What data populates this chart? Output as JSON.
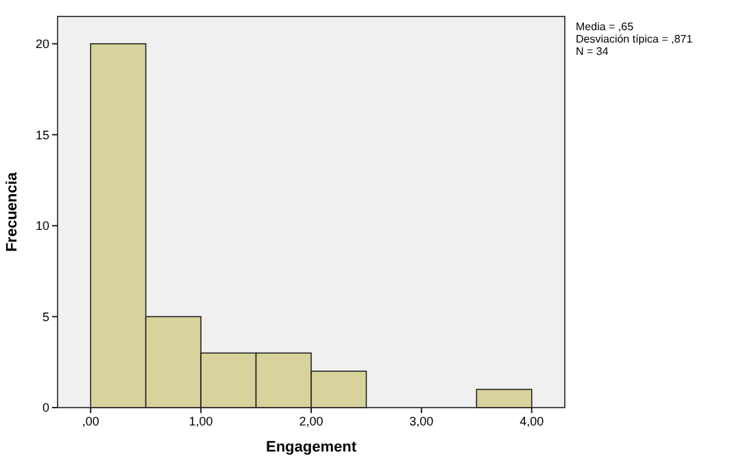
{
  "chart_data": {
    "type": "histogram",
    "xlabel": "Engagement",
    "ylabel": "Frecuencia",
    "bins": [
      0,
      0.5,
      1,
      1.5,
      2,
      2.5,
      3,
      3.5,
      4
    ],
    "values": [
      20,
      5,
      3,
      3,
      2,
      0,
      0,
      1
    ],
    "color": "#d8d29c",
    "xlim": [
      -0.3,
      4.3
    ],
    "ylim": [
      0,
      21.5
    ],
    "xticks": [
      {
        "value": 0,
        "label": ",00"
      },
      {
        "value": 1,
        "label": "1,00"
      },
      {
        "value": 2,
        "label": "2,00"
      },
      {
        "value": 3,
        "label": "3,00"
      },
      {
        "value": 4,
        "label": "4,00"
      }
    ],
    "yticks": [
      0,
      5,
      10,
      15,
      20
    ],
    "grid": false,
    "annotations": [
      "Media = ,65",
      "Desviación típica = ,871",
      "N = 34"
    ]
  }
}
